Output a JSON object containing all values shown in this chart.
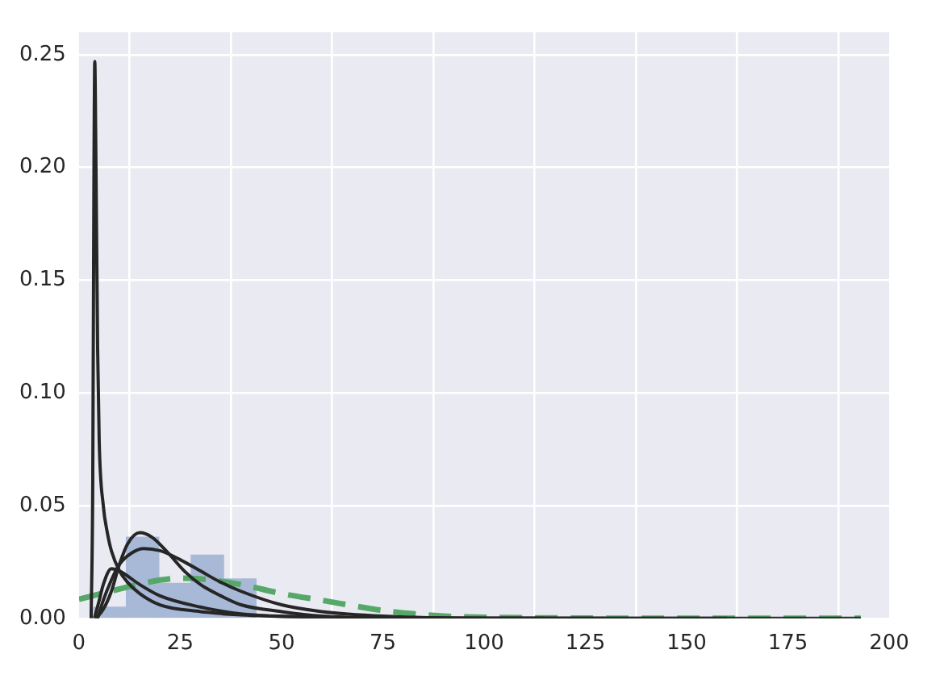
{
  "chart_data": {
    "type": "histogram",
    "bins": [
      3.7,
      11.7,
      19.7,
      27.7,
      35.7,
      43.7
    ],
    "values": [
      0.005,
      0.036,
      0.0155,
      0.028,
      0.0175
    ],
    "color": "#a8b9d8",
    "series": [
      {
        "type": "line",
        "color": "#262626",
        "x": [
          3,
          3.4,
          3.7,
          3.9,
          4.2,
          4.6,
          5,
          6,
          7,
          8,
          10,
          12,
          15,
          20,
          30,
          40,
          60,
          100,
          150,
          193
        ],
        "values": [
          0,
          0.06,
          0.2,
          0.247,
          0.2,
          0.12,
          0.078,
          0.05,
          0.038,
          0.03,
          0.021,
          0.016,
          0.011,
          0.006,
          0.003,
          0.0015,
          0.0005,
          0,
          0,
          0
        ]
      },
      {
        "type": "line",
        "color": "#262626",
        "x": [
          4.2,
          6,
          8,
          10,
          12,
          15,
          18,
          22,
          26,
          30,
          35,
          40,
          50,
          60,
          75,
          100,
          130
        ],
        "values": [
          0,
          0.004,
          0.012,
          0.024,
          0.033,
          0.038,
          0.036,
          0.029,
          0.021,
          0.015,
          0.01,
          0.006,
          0.003,
          0.001,
          0.0002,
          0,
          0
        ]
      },
      {
        "type": "line",
        "color": "#262626",
        "x": [
          4.6,
          6,
          8,
          10,
          13,
          16,
          20,
          25,
          30,
          35,
          40,
          50,
          60,
          75,
          100,
          160
        ],
        "values": [
          0,
          0.008,
          0.017,
          0.024,
          0.029,
          0.031,
          0.03,
          0.026,
          0.021,
          0.016,
          0.012,
          0.006,
          0.003,
          0.001,
          0,
          0
        ]
      },
      {
        "type": "line",
        "color": "#262626",
        "x": [
          3.8,
          5,
          6,
          8,
          10,
          15,
          20,
          30,
          40,
          60,
          100,
          115
        ],
        "values": [
          0,
          0.008,
          0.015,
          0.022,
          0.021,
          0.015,
          0.01,
          0.005,
          0.002,
          0.0005,
          0,
          0
        ]
      },
      {
        "type": "line",
        "color": "#55a868",
        "line_style": "dashed",
        "x": [
          0,
          10,
          20,
          25,
          30,
          40,
          50,
          60,
          75,
          90,
          100,
          125,
          150,
          193
        ],
        "values": [
          0.0085,
          0.013,
          0.017,
          0.0178,
          0.0175,
          0.015,
          0.011,
          0.008,
          0.0035,
          0.001,
          0.0005,
          0.0001,
          0,
          0
        ]
      }
    ],
    "xlim": [
      0,
      200
    ],
    "xticks": [
      0,
      25,
      50,
      75,
      100,
      125,
      150,
      175,
      200
    ],
    "ylim": [
      0,
      0.26
    ],
    "yticks": [
      {
        "value": 0,
        "label": "0.00"
      },
      {
        "value": 0.05,
        "label": "0.05"
      },
      {
        "value": 0.1,
        "label": "0.10"
      },
      {
        "value": 0.15,
        "label": "0.15"
      },
      {
        "value": 0.2,
        "label": "0.20"
      },
      {
        "value": 0.25,
        "label": "0.25"
      }
    ],
    "grid": true
  }
}
